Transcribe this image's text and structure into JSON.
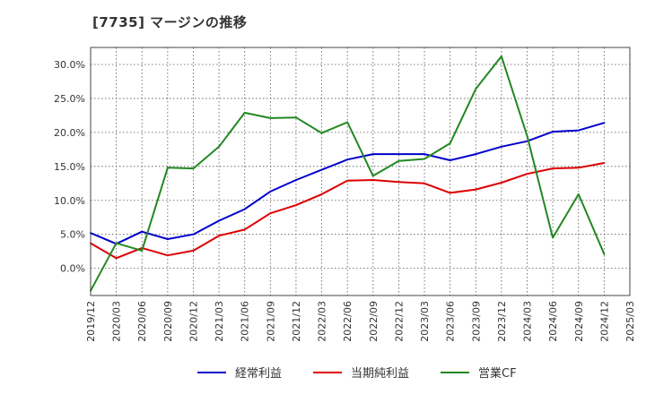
{
  "title": "[7735]  マージンの推移",
  "chart_data": {
    "type": "line",
    "title": "[7735]  マージンの推移",
    "xlabel": "",
    "ylabel": "",
    "ylim": [
      -4.0,
      32.5
    ],
    "y_ticks": [
      0,
      5,
      10,
      15,
      20,
      25,
      30
    ],
    "y_tick_labels": [
      "0.0%",
      "5.0%",
      "10.0%",
      "15.0%",
      "20.0%",
      "25.0%",
      "30.0%"
    ],
    "categories": [
      "2019/12",
      "2020/03",
      "2020/06",
      "2020/09",
      "2020/12",
      "2021/03",
      "2021/06",
      "2021/09",
      "2021/12",
      "2022/03",
      "2022/06",
      "2022/09",
      "2022/12",
      "2023/03",
      "2023/06",
      "2023/09",
      "2023/12",
      "2024/03",
      "2024/06",
      "2024/09",
      "2024/12",
      "2025/03"
    ],
    "grid": true,
    "grid_style": "dotted",
    "legend_position": "bottom",
    "series": [
      {
        "name": "経常利益",
        "color": "#0000cc",
        "values": [
          5.2,
          3.6,
          5.4,
          4.3,
          5.0,
          7.0,
          8.7,
          11.3,
          13.0,
          14.5,
          16.0,
          16.8,
          16.8,
          16.8,
          15.9,
          16.8,
          17.9,
          18.7,
          20.1,
          20.3,
          21.4,
          null
        ]
      },
      {
        "name": "当期純利益",
        "color": "#dd0000",
        "values": [
          3.7,
          1.5,
          3.0,
          1.9,
          2.6,
          4.8,
          5.7,
          8.1,
          9.3,
          10.9,
          12.9,
          13.0,
          12.7,
          12.5,
          11.1,
          11.6,
          12.6,
          13.9,
          14.7,
          14.8,
          15.5,
          null
        ]
      },
      {
        "name": "営業CF",
        "color": "#228822",
        "values": [
          -3.3,
          3.7,
          2.6,
          14.8,
          14.7,
          17.9,
          22.9,
          22.1,
          22.2,
          19.9,
          21.5,
          13.6,
          15.8,
          16.1,
          18.4,
          26.4,
          31.2,
          19.5,
          4.5,
          10.9,
          2.1,
          null
        ]
      }
    ]
  }
}
